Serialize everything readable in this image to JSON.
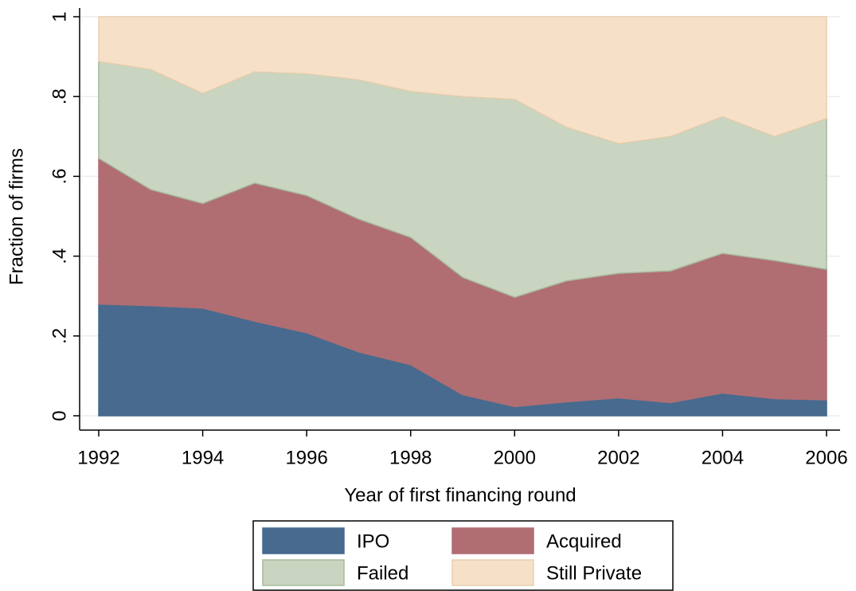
{
  "chart_data": {
    "type": "stacked_area",
    "x_label": "Year of first financing round",
    "y_label": "Fraction of firms",
    "x": [
      1992,
      1993,
      1994,
      1995,
      1996,
      1997,
      1998,
      1999,
      2000,
      2001,
      2002,
      2003,
      2004,
      2005,
      2006
    ],
    "series": [
      {
        "name": "IPO",
        "color": "#476a8e",
        "values": [
          0.28,
          0.276,
          0.27,
          0.237,
          0.208,
          0.16,
          0.128,
          0.053,
          0.023,
          0.035,
          0.045,
          0.033,
          0.057,
          0.043,
          0.04
        ]
      },
      {
        "name": "Acquired",
        "color": "#b06e72",
        "values": [
          0.365,
          0.291,
          0.262,
          0.346,
          0.344,
          0.333,
          0.319,
          0.294,
          0.274,
          0.303,
          0.312,
          0.33,
          0.35,
          0.346,
          0.327
        ]
      },
      {
        "name": "Failed",
        "color": "#c9d5c0",
        "values": [
          0.243,
          0.301,
          0.276,
          0.279,
          0.305,
          0.349,
          0.366,
          0.453,
          0.496,
          0.385,
          0.325,
          0.337,
          0.343,
          0.311,
          0.378
        ]
      },
      {
        "name": "Still Private",
        "color": "#f6e1c8",
        "values": [
          0.112,
          0.132,
          0.192,
          0.138,
          0.143,
          0.158,
          0.187,
          0.2,
          0.207,
          0.277,
          0.318,
          0.3,
          0.25,
          0.3,
          0.255
        ]
      }
    ],
    "xlim": [
      1992,
      2006
    ],
    "xticks": [
      1992,
      1994,
      1996,
      1998,
      2000,
      2002,
      2004,
      2006
    ],
    "ylim": [
      0,
      1
    ],
    "yticks": [
      0,
      {
        "value": 0.2,
        "label": ".2"
      },
      {
        "value": 0.4,
        "label": ".4"
      },
      {
        "value": 0.6,
        "label": ".6"
      },
      {
        "value": 0.8,
        "label": ".8"
      },
      1
    ],
    "grid": true,
    "legend_position": "bottom"
  }
}
